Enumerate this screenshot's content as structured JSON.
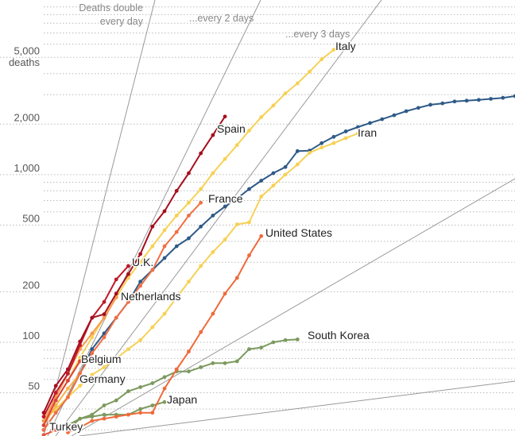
{
  "chart_data": {
    "type": "line",
    "log_scale": true,
    "grid": true,
    "y_label": "deaths",
    "annotations": [
      "Deaths double",
      "every day",
      "...every 2 days",
      "...every 3 days"
    ],
    "xlim": [
      0,
      39
    ],
    "ylim": [
      27.6,
      11000
    ],
    "yticks": [
      50,
      100,
      200,
      500,
      {
        "value": 1000,
        "label": "1,000"
      },
      {
        "value": 2000,
        "label": "2,000"
      },
      {
        "value": 5000,
        "label": "5,000"
      }
    ],
    "yminor": [
      30,
      40,
      60,
      70,
      80,
      90,
      300,
      400,
      600,
      700,
      800,
      900,
      3000,
      4000,
      6000,
      7000,
      8000,
      9000,
      10000
    ],
    "x": [
      0,
      1,
      2,
      3,
      4,
      5,
      6,
      7,
      8,
      9,
      10,
      11,
      12,
      13,
      14,
      15,
      16,
      17,
      18,
      19,
      20,
      21,
      22,
      23,
      24,
      25,
      26,
      27,
      28,
      29,
      30,
      31,
      32,
      33,
      34,
      35,
      36,
      37,
      38,
      39
    ],
    "series": [
      {
        "name": "South Korea",
        "color": "#7c9a5e",
        "values": [
          null,
          null,
          30,
          35,
          37,
          42,
          45,
          51,
          54,
          57,
          62,
          67,
          67,
          71,
          75,
          75,
          77,
          91,
          93,
          100,
          103,
          104,
          null,
          null,
          null,
          null,
          null,
          null,
          null,
          null,
          null,
          null,
          null,
          null,
          null,
          null,
          null,
          null,
          null,
          null
        ]
      },
      {
        "name": "Japan",
        "color": "#7c9a5e",
        "values": [
          null,
          null,
          32,
          35,
          36,
          37,
          37,
          37,
          40,
          42,
          44,
          null,
          null,
          null,
          null,
          null,
          null,
          null,
          null,
          null,
          null,
          null,
          null,
          null,
          null,
          null,
          null,
          null,
          null,
          null,
          null,
          null,
          null,
          null,
          null,
          null,
          null,
          null,
          null,
          null
        ]
      },
      {
        "name": "Iran",
        "color": "#2f5a87",
        "values": [
          30,
          38,
          47,
          65,
          91,
          113,
          140,
          174,
          230,
          270,
          318,
          374,
          417,
          490,
          570,
          645,
          720,
          820,
          920,
          1020,
          1110,
          1380,
          1390,
          1540,
          1680,
          1810,
          1920,
          2030,
          2140,
          2260,
          2390,
          2500,
          2610,
          2660,
          2730,
          2760,
          2790,
          2830,
          2870,
          2940
        ]
      },
      {
        "color": "#f6d155",
        "values": [
          34,
          40,
          47,
          55,
          64,
          71,
          80,
          91,
          103,
          123,
          148,
          185,
          230,
          285,
          345,
          410,
          505,
          519,
          740,
          860,
          1000,
          1150,
          1350,
          1450,
          1540,
          1650,
          1760,
          null,
          null,
          null,
          null,
          null,
          null,
          null,
          null,
          null,
          null,
          null,
          null,
          null
        ]
      },
      {
        "name": "Italy",
        "color": "#f6d155",
        "values": [
          34,
          45,
          59,
          81,
          107,
          140,
          185,
          242,
          301,
          374,
          466,
          570,
          680,
          820,
          1020,
          1240,
          1500,
          1830,
          2200,
          2580,
          3050,
          3500,
          4110,
          4870,
          5560,
          null,
          null,
          null,
          null,
          null,
          null,
          null,
          null,
          null,
          null,
          null,
          null,
          null,
          null,
          null
        ]
      },
      {
        "name": "United States",
        "color": "#ef6a3a",
        "values": [
          null,
          null,
          29,
          31,
          34,
          35,
          36,
          37,
          38,
          38,
          53,
          69,
          88,
          115,
          148,
          195,
          242,
          330,
          430,
          null,
          null,
          null,
          null,
          null,
          null,
          null,
          null,
          null,
          null,
          null,
          null,
          null,
          null,
          null,
          null,
          null,
          null,
          null,
          null,
          null
        ]
      },
      {
        "name": "Germany",
        "color": "#f8b24a",
        "values": [
          32,
          42,
          53,
          65,
          null,
          null,
          null,
          null,
          null,
          null,
          null,
          null,
          null,
          null,
          null,
          null,
          null,
          null,
          null,
          null,
          null,
          null,
          null,
          null,
          null,
          null,
          null,
          null,
          null,
          null,
          null,
          null,
          null,
          null,
          null,
          null,
          null,
          null,
          null,
          null
        ]
      },
      {
        "name": "Netherlands",
        "color": "#f79b4f",
        "values": [
          34,
          47,
          65,
          91,
          113,
          140,
          185,
          null,
          null,
          null,
          null,
          null,
          null,
          null,
          null,
          null,
          null,
          null,
          null,
          null,
          null,
          null,
          null,
          null,
          null,
          null,
          null,
          null,
          null,
          null,
          null,
          null,
          null,
          null,
          null,
          null,
          null,
          null,
          null,
          null
        ]
      },
      {
        "name": "France",
        "color": "#f07045",
        "values": [
          30,
          38,
          47,
          65,
          86,
          107,
          140,
          174,
          217,
          270,
          374,
          455,
          570,
          680,
          null,
          null,
          null,
          null,
          null,
          null,
          null,
          null,
          null,
          null,
          null,
          null,
          null,
          null,
          null,
          null,
          null,
          null,
          null,
          null,
          null,
          null,
          null,
          null,
          null,
          null
        ]
      },
      {
        "name": "Belgium",
        "color": "#d8443a",
        "values": [
          32,
          45,
          59,
          77,
          null,
          null,
          null,
          null,
          null,
          null,
          null,
          null,
          null,
          null,
          null,
          null,
          null,
          null,
          null,
          null,
          null,
          null,
          null,
          null,
          null,
          null,
          null,
          null,
          null,
          null,
          null,
          null,
          null,
          null,
          null,
          null,
          null,
          null,
          null,
          null
        ]
      },
      {
        "name": "Turkey",
        "color": "#e8553a",
        "values": [
          28,
          30,
          null,
          null,
          null,
          null,
          null,
          null,
          null,
          null,
          null,
          null,
          null,
          null,
          null,
          null,
          null,
          null,
          null,
          null,
          null,
          null,
          null,
          null,
          null,
          null,
          null,
          null,
          null,
          null,
          null,
          null,
          null,
          null,
          null,
          null,
          null,
          null,
          null,
          null
        ]
      },
      {
        "name": "U.K.",
        "color": "#c0182a",
        "values": [
          36,
          50,
          65,
          96,
          140,
          174,
          237,
          285,
          null,
          null,
          null,
          null,
          null,
          null,
          null,
          null,
          null,
          null,
          null,
          null,
          null,
          null,
          null,
          null,
          null,
          null,
          null,
          null,
          null,
          null,
          null,
          null,
          null,
          null,
          null,
          null,
          null,
          null,
          null,
          null
        ]
      },
      {
        "name": "Spain",
        "color": "#a50f1e",
        "values": [
          38,
          55,
          69,
          101,
          140,
          147,
          195,
          255,
          336,
          490,
          605,
          800,
          1020,
          1340,
          1720,
          2220,
          null,
          null,
          null,
          null,
          null,
          null,
          null,
          null,
          null,
          null,
          null,
          null,
          null,
          null,
          null,
          null,
          null,
          null,
          null,
          null,
          null,
          null,
          null,
          null
        ]
      }
    ]
  }
}
